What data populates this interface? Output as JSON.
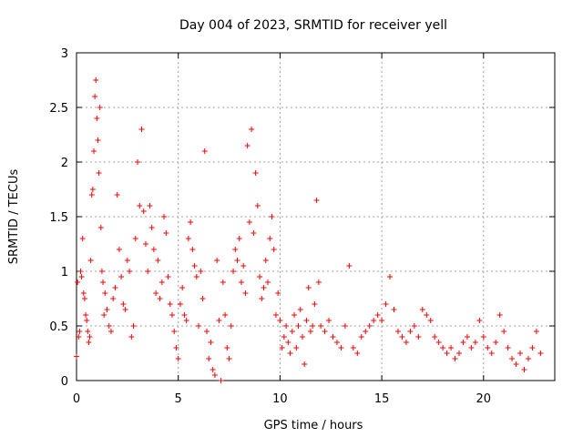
{
  "chart_data": {
    "type": "scatter",
    "title": "Day 004 of 2023, SRMTID for receiver yell",
    "xlabel": "GPS time / hours",
    "ylabel": "SRMTID / TECUs",
    "xlim": [
      0,
      23.5
    ],
    "ylim": [
      0,
      3
    ],
    "xticks": [
      0,
      5,
      10,
      15,
      20
    ],
    "xtick_labels": [
      "0",
      "5",
      "10",
      "15",
      "20"
    ],
    "yticks": [
      0,
      0.5,
      1,
      1.5,
      2,
      2.5,
      3
    ],
    "ytick_labels": [
      "0",
      "0.5",
      "1",
      "1.5",
      "2",
      "2.5",
      "3"
    ],
    "grid": true,
    "marker": "+",
    "series": [
      {
        "name": "SRMTID",
        "color": "#ff0000",
        "points": [
          [
            0.0,
            0.22
          ],
          [
            0.05,
            0.9
          ],
          [
            0.1,
            0.4
          ],
          [
            0.15,
            0.45
          ],
          [
            0.2,
            1.0
          ],
          [
            0.25,
            0.95
          ],
          [
            0.3,
            1.3
          ],
          [
            0.35,
            0.8
          ],
          [
            0.4,
            0.75
          ],
          [
            0.45,
            0.6
          ],
          [
            0.5,
            0.55
          ],
          [
            0.55,
            0.45
          ],
          [
            0.6,
            0.35
          ],
          [
            0.65,
            0.4
          ],
          [
            0.7,
            1.1
          ],
          [
            0.75,
            1.7
          ],
          [
            0.8,
            1.75
          ],
          [
            0.85,
            2.1
          ],
          [
            0.9,
            2.6
          ],
          [
            0.95,
            2.75
          ],
          [
            1.0,
            2.4
          ],
          [
            1.05,
            2.2
          ],
          [
            1.1,
            1.9
          ],
          [
            1.15,
            2.5
          ],
          [
            1.2,
            1.4
          ],
          [
            1.25,
            1.0
          ],
          [
            1.3,
            0.9
          ],
          [
            1.35,
            0.6
          ],
          [
            1.4,
            0.8
          ],
          [
            1.5,
            0.65
          ],
          [
            1.6,
            0.5
          ],
          [
            1.7,
            0.45
          ],
          [
            1.8,
            0.75
          ],
          [
            1.9,
            0.85
          ],
          [
            2.0,
            1.7
          ],
          [
            2.1,
            1.2
          ],
          [
            2.2,
            0.95
          ],
          [
            2.3,
            0.7
          ],
          [
            2.4,
            0.65
          ],
          [
            2.5,
            1.1
          ],
          [
            2.6,
            1.0
          ],
          [
            2.7,
            0.4
          ],
          [
            2.8,
            0.5
          ],
          [
            2.9,
            1.3
          ],
          [
            3.0,
            2.0
          ],
          [
            3.1,
            1.6
          ],
          [
            3.2,
            2.3
          ],
          [
            3.3,
            1.55
          ],
          [
            3.4,
            1.25
          ],
          [
            3.5,
            1.0
          ],
          [
            3.6,
            1.6
          ],
          [
            3.7,
            1.4
          ],
          [
            3.8,
            1.2
          ],
          [
            3.9,
            0.8
          ],
          [
            4.0,
            1.1
          ],
          [
            4.1,
            0.75
          ],
          [
            4.2,
            0.9
          ],
          [
            4.3,
            1.5
          ],
          [
            4.4,
            1.35
          ],
          [
            4.5,
            0.95
          ],
          [
            4.6,
            0.7
          ],
          [
            4.7,
            0.6
          ],
          [
            4.8,
            0.45
          ],
          [
            4.9,
            0.3
          ],
          [
            5.0,
            0.2
          ],
          [
            5.1,
            0.7
          ],
          [
            5.2,
            0.85
          ],
          [
            5.3,
            0.6
          ],
          [
            5.4,
            0.55
          ],
          [
            5.5,
            1.3
          ],
          [
            5.6,
            1.45
          ],
          [
            5.7,
            1.2
          ],
          [
            5.8,
            1.05
          ],
          [
            5.9,
            0.95
          ],
          [
            6.0,
            0.5
          ],
          [
            6.1,
            1.0
          ],
          [
            6.2,
            0.75
          ],
          [
            6.3,
            2.1
          ],
          [
            6.4,
            0.45
          ],
          [
            6.5,
            0.2
          ],
          [
            6.6,
            0.35
          ],
          [
            6.7,
            0.1
          ],
          [
            6.8,
            0.05
          ],
          [
            6.9,
            1.1
          ],
          [
            7.0,
            0.55
          ],
          [
            7.1,
            0.0
          ],
          [
            7.2,
            0.9
          ],
          [
            7.3,
            0.6
          ],
          [
            7.4,
            0.3
          ],
          [
            7.5,
            0.2
          ],
          [
            7.6,
            0.5
          ],
          [
            7.7,
            1.0
          ],
          [
            7.8,
            1.2
          ],
          [
            7.9,
            1.1
          ],
          [
            8.0,
            1.3
          ],
          [
            8.1,
            0.9
          ],
          [
            8.2,
            1.05
          ],
          [
            8.3,
            0.8
          ],
          [
            8.4,
            2.15
          ],
          [
            8.5,
            1.45
          ],
          [
            8.6,
            2.3
          ],
          [
            8.7,
            1.35
          ],
          [
            8.8,
            1.9
          ],
          [
            8.9,
            1.6
          ],
          [
            9.0,
            0.95
          ],
          [
            9.1,
            0.75
          ],
          [
            9.2,
            0.85
          ],
          [
            9.3,
            1.1
          ],
          [
            9.4,
            0.9
          ],
          [
            9.5,
            1.3
          ],
          [
            9.6,
            1.5
          ],
          [
            9.7,
            1.2
          ],
          [
            9.8,
            0.6
          ],
          [
            9.9,
            0.8
          ],
          [
            10.0,
            0.55
          ],
          [
            10.1,
            0.3
          ],
          [
            10.2,
            0.4
          ],
          [
            10.3,
            0.5
          ],
          [
            10.4,
            0.35
          ],
          [
            10.5,
            0.25
          ],
          [
            10.6,
            0.45
          ],
          [
            10.7,
            0.6
          ],
          [
            10.8,
            0.3
          ],
          [
            10.9,
            0.5
          ],
          [
            11.0,
            0.65
          ],
          [
            11.1,
            0.4
          ],
          [
            11.2,
            0.15
          ],
          [
            11.3,
            0.55
          ],
          [
            11.4,
            0.85
          ],
          [
            11.5,
            0.45
          ],
          [
            11.6,
            0.5
          ],
          [
            11.7,
            0.7
          ],
          [
            11.8,
            1.65
          ],
          [
            11.9,
            0.9
          ],
          [
            12.0,
            0.5
          ],
          [
            12.2,
            0.45
          ],
          [
            12.4,
            0.55
          ],
          [
            12.6,
            0.4
          ],
          [
            12.8,
            0.35
          ],
          [
            13.0,
            0.3
          ],
          [
            13.2,
            0.5
          ],
          [
            13.4,
            1.05
          ],
          [
            13.6,
            0.3
          ],
          [
            13.8,
            0.25
          ],
          [
            14.0,
            0.4
          ],
          [
            14.2,
            0.45
          ],
          [
            14.4,
            0.5
          ],
          [
            14.6,
            0.55
          ],
          [
            14.8,
            0.6
          ],
          [
            15.0,
            0.55
          ],
          [
            15.2,
            0.7
          ],
          [
            15.4,
            0.95
          ],
          [
            15.6,
            0.65
          ],
          [
            15.8,
            0.45
          ],
          [
            16.0,
            0.4
          ],
          [
            16.2,
            0.35
          ],
          [
            16.4,
            0.45
          ],
          [
            16.6,
            0.5
          ],
          [
            16.8,
            0.4
          ],
          [
            17.0,
            0.65
          ],
          [
            17.2,
            0.6
          ],
          [
            17.4,
            0.55
          ],
          [
            17.6,
            0.4
          ],
          [
            17.8,
            0.35
          ],
          [
            18.0,
            0.3
          ],
          [
            18.2,
            0.25
          ],
          [
            18.4,
            0.3
          ],
          [
            18.6,
            0.2
          ],
          [
            18.8,
            0.25
          ],
          [
            19.0,
            0.35
          ],
          [
            19.2,
            0.4
          ],
          [
            19.4,
            0.3
          ],
          [
            19.6,
            0.35
          ],
          [
            19.8,
            0.55
          ],
          [
            20.0,
            0.4
          ],
          [
            20.2,
            0.3
          ],
          [
            20.4,
            0.25
          ],
          [
            20.6,
            0.35
          ],
          [
            20.8,
            0.6
          ],
          [
            21.0,
            0.45
          ],
          [
            21.2,
            0.3
          ],
          [
            21.4,
            0.2
          ],
          [
            21.6,
            0.15
          ],
          [
            21.8,
            0.25
          ],
          [
            22.0,
            0.1
          ],
          [
            22.2,
            0.2
          ],
          [
            22.4,
            0.3
          ],
          [
            22.6,
            0.45
          ],
          [
            22.8,
            0.25
          ]
        ]
      }
    ]
  }
}
